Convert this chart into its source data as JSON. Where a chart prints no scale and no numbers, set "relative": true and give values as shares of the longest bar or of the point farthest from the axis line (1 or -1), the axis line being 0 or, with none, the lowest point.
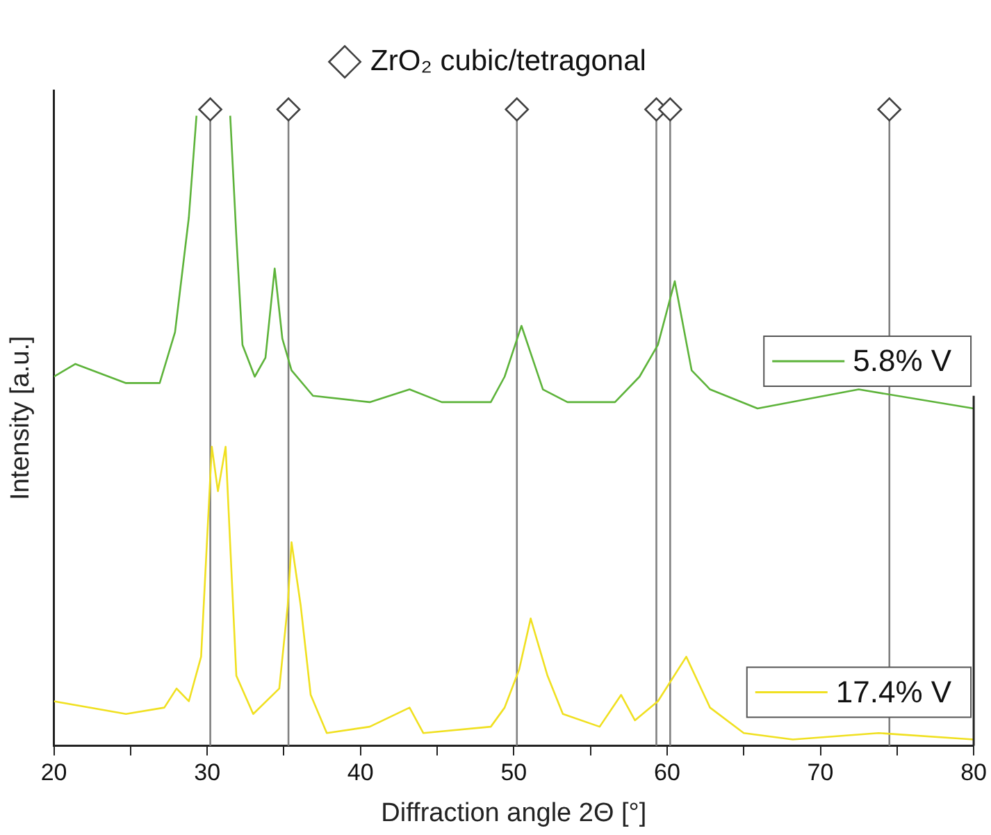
{
  "chart_data": {
    "type": "line",
    "relative": true,
    "xlabel": "Diffraction angle 2Θ [°]",
    "ylabel": "Intensity [a.u.]",
    "xlim": [
      20,
      80
    ],
    "xticks": [
      20,
      {
        "value": 25,
        "label": null
      },
      30,
      {
        "value": 35,
        "label": null
      },
      40,
      {
        "value": 45,
        "label": null
      },
      50,
      {
        "value": 55,
        "label": null
      },
      60,
      {
        "value": 65,
        "label": null
      },
      70,
      {
        "value": 75,
        "label": null
      },
      80
    ],
    "grid": false,
    "legend": "top",
    "marker": "none",
    "line_style": "solid",
    "series": [
      {
        "name": "5.8% V",
        "color": "#5db33a",
        "x": [
          20,
          21.4,
          24.7,
          26.9,
          27.9,
          28.8,
          29.3,
          30.2,
          31.5,
          31.9,
          32.3,
          33.1,
          33.8,
          34.4,
          34.9,
          35.5,
          36.9,
          40.6,
          43.2,
          45.3,
          48.5,
          49.4,
          50.5,
          51.9,
          53.5,
          56.6,
          58.2,
          59.4,
          60.5,
          61.6,
          62.8,
          65.9,
          72.5,
          80
        ],
        "values": [
          0.58,
          0.6,
          0.57,
          0.57,
          0.65,
          0.83,
          0.99,
          null,
          0.99,
          0.8,
          0.63,
          0.58,
          0.61,
          0.75,
          0.64,
          0.59,
          0.55,
          0.54,
          0.56,
          0.54,
          0.54,
          0.58,
          0.66,
          0.56,
          0.54,
          0.54,
          0.58,
          0.63,
          0.73,
          0.59,
          0.56,
          0.53,
          0.56,
          0.53
        ]
      },
      {
        "name": "17.4% V",
        "color": "#f0e020",
        "x": [
          20,
          24.7,
          27.2,
          28,
          28.8,
          29.6,
          30.3,
          30.7,
          31.2,
          31.9,
          33,
          34.7,
          35.25,
          35.5,
          36.1,
          36.75,
          37.8,
          40.6,
          43.2,
          44.1,
          48.5,
          49.4,
          50.35,
          51.1,
          52.2,
          53.2,
          55.6,
          57,
          57.9,
          59.4,
          61.25,
          62.8,
          65,
          68.2,
          73.8,
          80
        ],
        "values": [
          0.07,
          0.05,
          0.06,
          0.09,
          0.07,
          0.14,
          0.47,
          0.4,
          0.47,
          0.11,
          0.05,
          0.09,
          0.22,
          0.32,
          0.22,
          0.08,
          0.02,
          0.03,
          0.06,
          0.02,
          0.03,
          0.06,
          0.12,
          0.2,
          0.11,
          0.05,
          0.03,
          0.08,
          0.04,
          0.07,
          0.14,
          0.06,
          0.02,
          0.01,
          0.02,
          0.01
        ]
      },
      {
        "name": "ZrO₂ cubic/tetragonal",
        "type": "scatter",
        "marker": "diamond",
        "color": "#404040",
        "x": [
          30.2,
          35.3,
          50.2,
          59.3,
          60.2,
          74.5
        ],
        "values": [
          1,
          1,
          1,
          1,
          1,
          1
        ]
      }
    ],
    "ref_lines": [
      {
        "axis": "x",
        "value": 30.2,
        "color": "#808080"
      },
      {
        "axis": "x",
        "value": 35.3,
        "color": "#808080"
      },
      {
        "axis": "x",
        "value": 50.2,
        "color": "#808080"
      },
      {
        "axis": "x",
        "value": 59.3,
        "color": "#808080"
      },
      {
        "axis": "x",
        "value": 60.2,
        "color": "#808080"
      },
      {
        "axis": "x",
        "value": 74.5,
        "color": "#808080"
      }
    ]
  }
}
